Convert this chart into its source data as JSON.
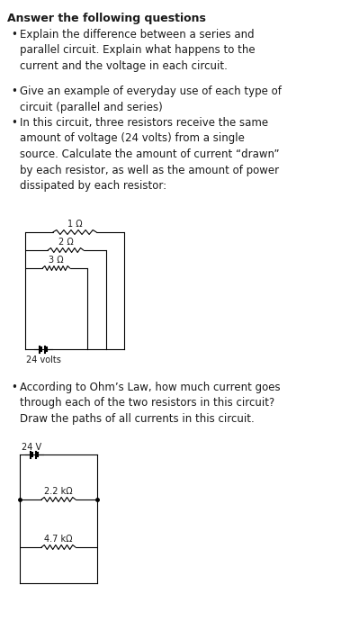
{
  "title": "Answer the following questions",
  "background_color": "#ffffff",
  "text_color": "#1a1a1a",
  "bullet1": "Explain the difference between a series and\nparallel circuit. Explain what happens to the\ncurrent and the voltage in each circuit.",
  "bullet2": "Give an example of everyday use of each type of\ncircuit (parallel and series)",
  "bullet3": "In this circuit, three resistors receive the same\namount of voltage (24 volts) from a single\nsource. Calculate the amount of current “drawn”\nby each resistor, as well as the amount of power\ndissipated by each resistor:",
  "bullet4": "According to Ohm’s Law, how much current goes\nthrough each of the two resistors in this circuit?\nDraw the paths of all currents in this circuit.",
  "c1_r1": "1 Ω",
  "c1_r2": "2 Ω",
  "c1_r3": "3 Ω",
  "c1_label": "24 volts",
  "c2_label": "24 V",
  "c2_r1": "2.2 kΩ",
  "c2_r2": "4.7 kΩ"
}
